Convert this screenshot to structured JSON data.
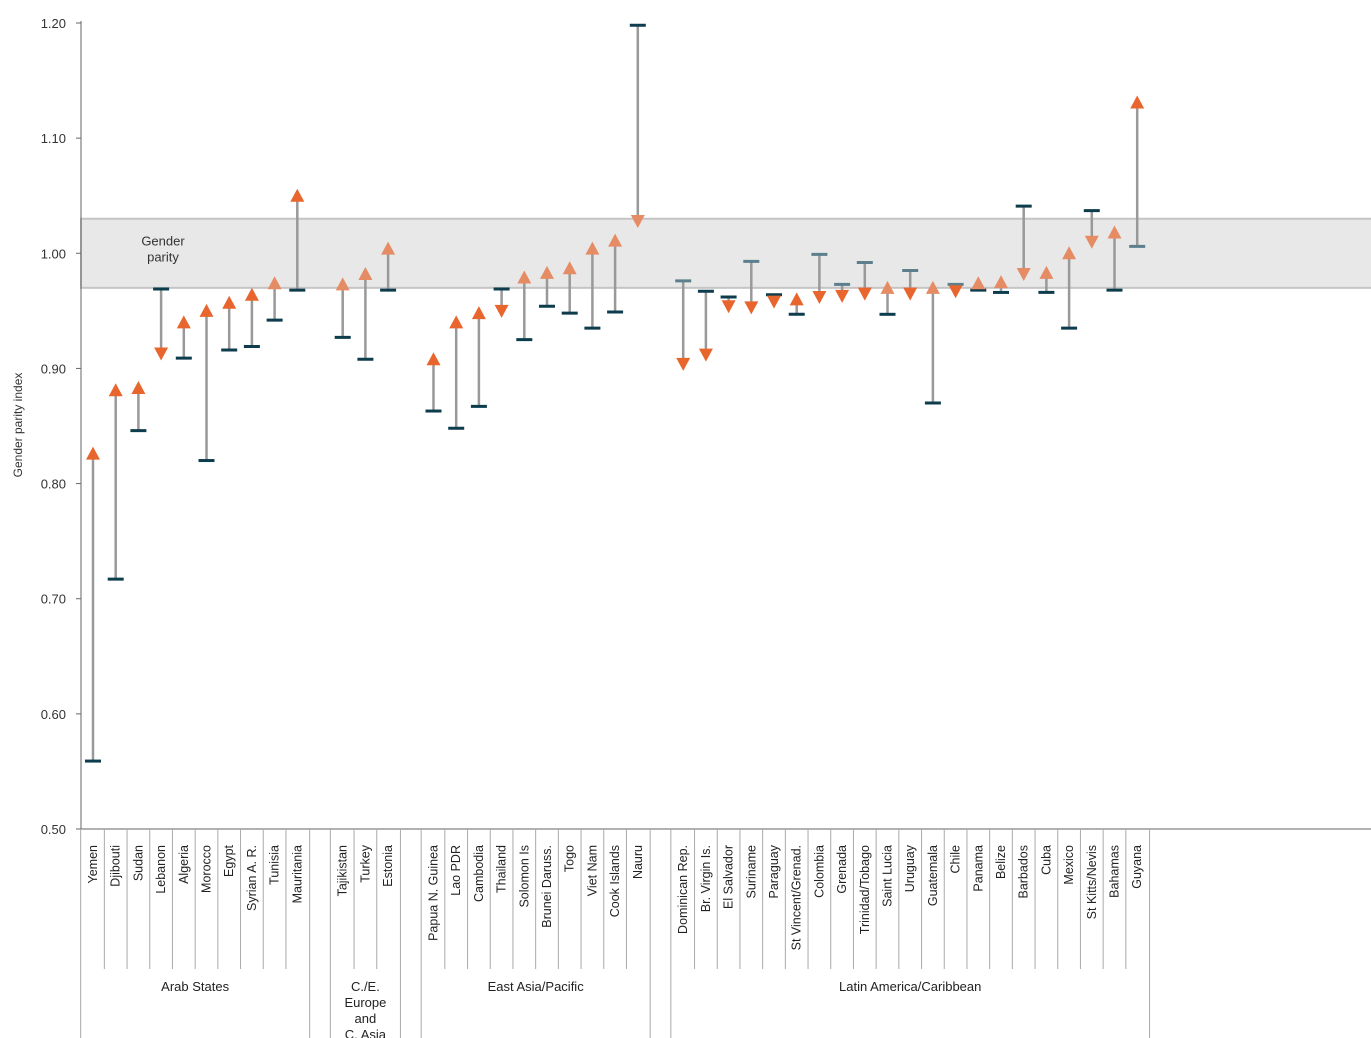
{
  "chart_data": {
    "type": "range",
    "ylabel": "Gender parity index",
    "ylim": [
      0.5,
      1.2
    ],
    "yticks": [
      "0.50",
      "0.60",
      "0.70",
      "0.80",
      "0.90",
      "1.00",
      "1.10",
      "1.20"
    ],
    "parity_band": {
      "label_line1": "Gender",
      "label_line2": "parity",
      "range": [
        0.97,
        1.03
      ]
    },
    "colors": {
      "band_fill": "#e8e8e8",
      "band_stroke": "#c4c4c4",
      "connector": "#999999",
      "start_marker": "#0d3c4c",
      "start_marker_light": "#5b7f8c",
      "end_marker": "#e8662e",
      "end_marker_light": "#e58c65",
      "axis": "#666666"
    },
    "regions": [
      {
        "name": "Arab States",
        "countries": [
          {
            "name": "Yemen",
            "start": 0.559,
            "end": 0.826
          },
          {
            "name": "Djibouti",
            "start": 0.717,
            "end": 0.881
          },
          {
            "name": "Sudan",
            "start": 0.846,
            "end": 0.883
          },
          {
            "name": "Lebanon",
            "start": 0.969,
            "end": 0.913
          },
          {
            "name": "Algeria",
            "start": 0.909,
            "end": 0.94
          },
          {
            "name": "Morocco",
            "start": 0.82,
            "end": 0.95
          },
          {
            "name": "Egypt",
            "start": 0.916,
            "end": 0.957
          },
          {
            "name": "Syrian A. R.",
            "start": 0.919,
            "end": 0.964
          },
          {
            "name": "Tunisia",
            "start": 0.942,
            "end": 0.974
          },
          {
            "name": "Mauritania",
            "start": 0.968,
            "end": 1.05
          }
        ]
      },
      {
        "name": "C./E. Europe and C. Asia",
        "countries": [
          {
            "name": "Tajikistan",
            "start": 0.927,
            "end": 0.973
          },
          {
            "name": "Turkey",
            "start": 0.908,
            "end": 0.982
          },
          {
            "name": "Estonia",
            "start": 0.968,
            "end": 1.004
          }
        ]
      },
      {
        "name": "East Asia/Pacific",
        "countries": [
          {
            "name": "Papua N. Guinea",
            "start": 0.863,
            "end": 0.908
          },
          {
            "name": "Lao PDR",
            "start": 0.848,
            "end": 0.94
          },
          {
            "name": "Cambodia",
            "start": 0.867,
            "end": 0.948
          },
          {
            "name": "Thailand",
            "start": 0.969,
            "end": 0.95
          },
          {
            "name": "Solomon Is",
            "start": 0.925,
            "end": 0.979
          },
          {
            "name": "Brunei Daruss.",
            "start": 0.954,
            "end": 0.983
          },
          {
            "name": "Togo",
            "start": 0.948,
            "end": 0.987
          },
          {
            "name": "Viet Nam",
            "start": 0.935,
            "end": 1.004
          },
          {
            "name": "Cook Islands",
            "start": 0.949,
            "end": 1.011
          },
          {
            "name": "Nauru",
            "start": 1.198,
            "end": 1.028
          }
        ]
      },
      {
        "name": "Latin America/Caribbean",
        "countries": [
          {
            "name": "Dominican Rep.",
            "start": 0.976,
            "end": 0.904
          },
          {
            "name": "Br. Virgin Is.",
            "start": 0.967,
            "end": 0.912
          },
          {
            "name": "El Salvador",
            "start": 0.962,
            "end": 0.954
          },
          {
            "name": "Suriname",
            "start": 0.993,
            "end": 0.953
          },
          {
            "name": "Paraguay",
            "start": 0.964,
            "end": 0.958
          },
          {
            "name": "St Vincent/Grenad.",
            "start": 0.947,
            "end": 0.96
          },
          {
            "name": "Colombia",
            "start": 0.999,
            "end": 0.962
          },
          {
            "name": "Grenada",
            "start": 0.973,
            "end": 0.963
          },
          {
            "name": "Trinidad/Tobago",
            "start": 0.992,
            "end": 0.965
          },
          {
            "name": "Saint Lucia",
            "start": 0.947,
            "end": 0.97
          },
          {
            "name": "Uruguay",
            "start": 0.985,
            "end": 0.965
          },
          {
            "name": "Guatemala",
            "start": 0.87,
            "end": 0.97
          },
          {
            "name": "Chile",
            "start": 0.973,
            "end": 0.967
          },
          {
            "name": "Panama",
            "start": 0.968,
            "end": 0.974
          },
          {
            "name": "Belize",
            "start": 0.966,
            "end": 0.975
          },
          {
            "name": "Barbados",
            "start": 1.041,
            "end": 0.982
          },
          {
            "name": "Cuba",
            "start": 0.966,
            "end": 0.983
          },
          {
            "name": "Mexico",
            "start": 0.935,
            "end": 1.0
          },
          {
            "name": "St Kitts/Nevis",
            "start": 1.037,
            "end": 1.01
          },
          {
            "name": "Bahamas",
            "start": 0.968,
            "end": 1.018
          },
          {
            "name": "Guyana",
            "start": 1.006,
            "end": 1.131
          }
        ]
      }
    ]
  }
}
